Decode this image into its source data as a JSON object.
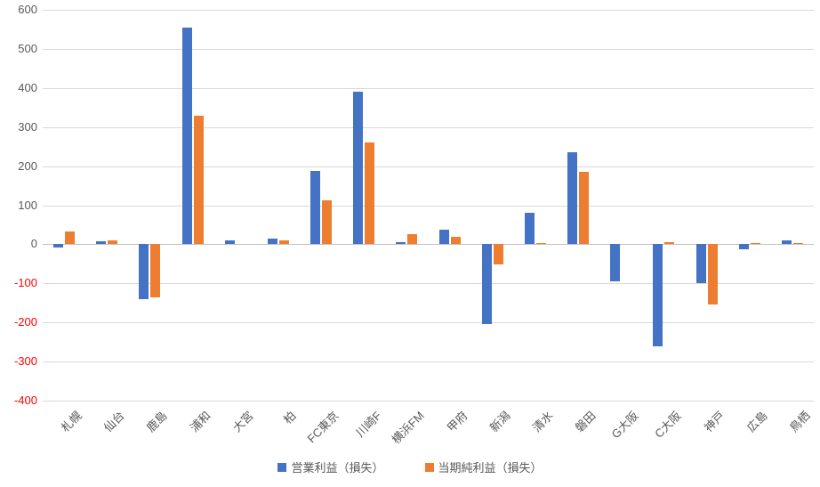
{
  "chart_data": {
    "type": "bar",
    "title": "",
    "categories": [
      "札幌",
      "仙台",
      "鹿島",
      "浦和",
      "大宮",
      "柏",
      "FC東京",
      "川崎F",
      "横浜FM",
      "甲府",
      "新潟",
      "清水",
      "磐田",
      "G大阪",
      "C大阪",
      "神戸",
      "広島",
      "鳥栖"
    ],
    "series": [
      {
        "name": "営業利益（損失）",
        "color": "#4472C4",
        "values": [
          -8,
          8,
          -140,
          555,
          10,
          14,
          187,
          390,
          5,
          38,
          -205,
          80,
          235,
          -95,
          -260,
          -100,
          -12,
          10
        ]
      },
      {
        "name": "当期純利益（損失）",
        "color": "#ED7D31",
        "values": [
          33,
          11,
          -135,
          330,
          0,
          11,
          113,
          260,
          25,
          20,
          -52,
          3,
          185,
          0,
          6,
          -155,
          4,
          4
        ]
      }
    ],
    "ylim": [
      -400,
      600
    ],
    "ytick_step": 100,
    "grid": true,
    "legend_position": "bottom",
    "axis": {
      "tick_labels": [
        "600",
        "500",
        "400",
        "300",
        "200",
        "100",
        "0",
        "-100",
        "-200",
        "-300",
        "-400"
      ],
      "positive_label_color": "#595959",
      "negative_label_color": "#FF0000",
      "gridline_color": "#D9D9D9"
    }
  }
}
